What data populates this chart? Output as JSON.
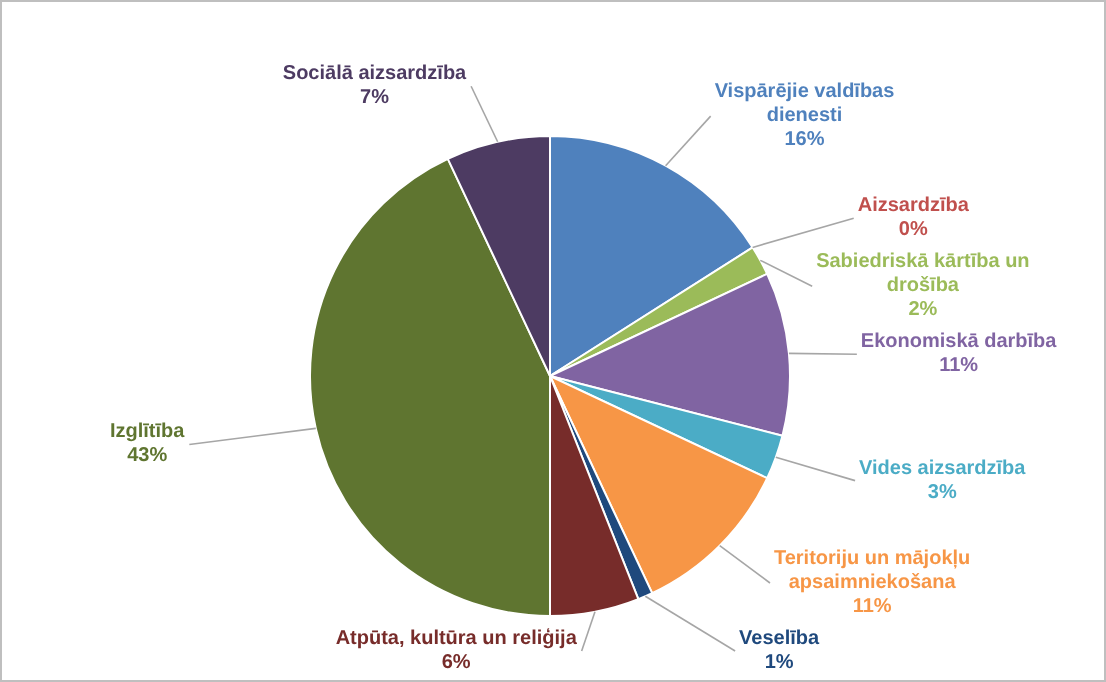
{
  "chart_data": {
    "type": "pie",
    "categories": [
      "Vispārējie valdības dienesti",
      "Aizsardzība",
      "Sabiedriskā kārtība un drošība",
      "Ekonomiskā darbība",
      "Vides aizsardzība",
      "Teritoriju un mājokļu apsaimniekošana",
      "Veselība",
      "Atpūta, kultūra un reliģija",
      "Izglītība",
      "Sociālā aizsardzība"
    ],
    "values": [
      16,
      0,
      2,
      11,
      3,
      11,
      1,
      6,
      43,
      7
    ],
    "value_labels": [
      "16%",
      "0%",
      "2%",
      "11%",
      "3%",
      "11%",
      "1%",
      "6%",
      "43%",
      "7%"
    ],
    "colors": [
      "#4f81bd",
      "#c0504d",
      "#9bbb59",
      "#8064a2",
      "#4bacc6",
      "#f79646",
      "#1f497d",
      "#772c2a",
      "#5f7530",
      "#4d3b62"
    ],
    "legend": false
  }
}
